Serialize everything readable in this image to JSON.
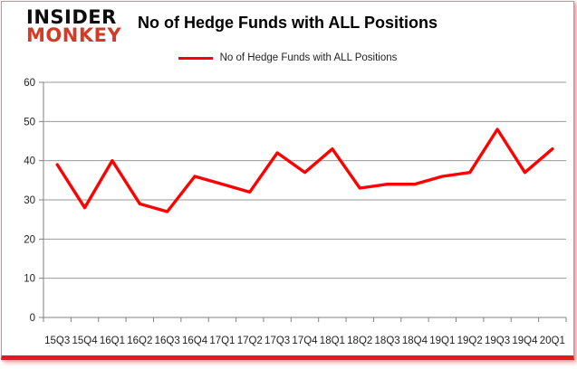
{
  "brand": {
    "line1": "INSIDER",
    "line2": "MONKEY",
    "accent_color": "#d23b27"
  },
  "header": {
    "title": "No of Hedge Funds with ALL Positions"
  },
  "legend": {
    "label": "No of Hedge Funds with ALL Positions",
    "color": "#fe0000"
  },
  "chart_data": {
    "type": "line",
    "title": "No of Hedge Funds with ALL Positions",
    "categories": [
      "15Q3",
      "15Q4",
      "16Q1",
      "16Q2",
      "16Q3",
      "16Q4",
      "17Q1",
      "17Q2",
      "17Q3",
      "17Q4",
      "18Q1",
      "18Q2",
      "18Q3",
      "18Q4",
      "19Q1",
      "19Q2",
      "19Q3",
      "19Q4",
      "20Q1"
    ],
    "series": [
      {
        "name": "No of Hedge Funds with ALL Positions",
        "color": "#fe0000",
        "values": [
          39,
          28,
          40,
          29,
          27,
          36,
          34,
          32,
          42,
          37,
          43,
          33,
          34,
          34,
          36,
          37,
          48,
          37,
          43
        ]
      }
    ],
    "xlabel": "",
    "ylabel": "",
    "ylim": [
      0,
      60
    ],
    "ytick_step": 10,
    "grid": true,
    "gridline_color": "#999999",
    "axis_color": "#808080",
    "label_color": "#1f1f1f",
    "legend_position": "top"
  }
}
